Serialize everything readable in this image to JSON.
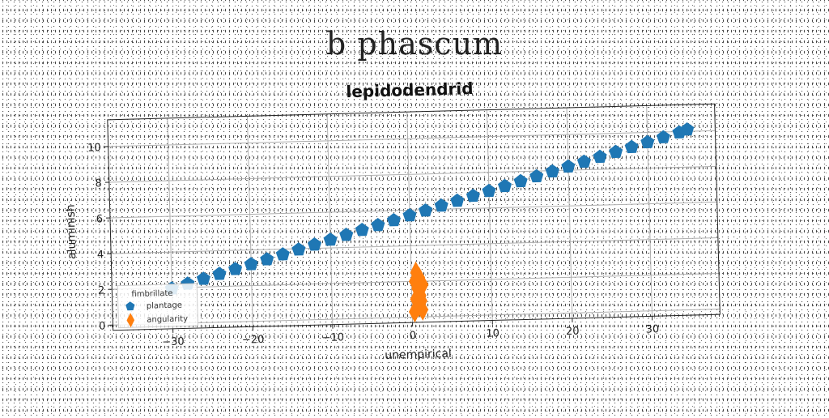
{
  "page": {
    "title": "b phascum"
  },
  "chart_data": {
    "type": "scatter",
    "title": "lepidodendrid",
    "xlabel": "unempirical",
    "ylabel": "aluminish",
    "xlim": [
      -37.5,
      38.5
    ],
    "ylim": [
      -0.3,
      11.5
    ],
    "xticks": [
      -30,
      -20,
      -10,
      0,
      10,
      20,
      30
    ],
    "yticks": [
      0,
      2,
      4,
      6,
      8,
      10
    ],
    "grid": true,
    "legend": {
      "title": "fimbrillate",
      "position": "lower-left"
    },
    "series": [
      {
        "name": "plantage",
        "color": "#1f77b4",
        "marker": "pentagon",
        "points": [
          [
            -30,
            1.95
          ],
          [
            -28,
            2.2
          ],
          [
            -26,
            2.45
          ],
          [
            -24,
            2.7
          ],
          [
            -22,
            2.95
          ],
          [
            -20,
            3.2
          ],
          [
            -18,
            3.45
          ],
          [
            -16,
            3.7
          ],
          [
            -14,
            3.95
          ],
          [
            -12,
            4.2
          ],
          [
            -10,
            4.45
          ],
          [
            -8,
            4.7
          ],
          [
            -6,
            4.95
          ],
          [
            -4,
            5.2
          ],
          [
            -2,
            5.45
          ],
          [
            0,
            5.7
          ],
          [
            2,
            5.95
          ],
          [
            4,
            6.2
          ],
          [
            6,
            6.45
          ],
          [
            8,
            6.7
          ],
          [
            10,
            6.95
          ],
          [
            12,
            7.2
          ],
          [
            14,
            7.45
          ],
          [
            16,
            7.7
          ],
          [
            18,
            7.95
          ],
          [
            20,
            8.2
          ],
          [
            22,
            8.45
          ],
          [
            24,
            8.7
          ],
          [
            26,
            8.95
          ],
          [
            28,
            9.2
          ],
          [
            30,
            9.45
          ],
          [
            32,
            9.7
          ],
          [
            34,
            9.95
          ],
          [
            35,
            10.1
          ]
        ]
      },
      {
        "name": "angularity",
        "color": "#ff7f0e",
        "marker": "diamond",
        "points": [
          [
            0.3,
            0.3
          ],
          [
            0.8,
            0.6
          ],
          [
            1.3,
            0.4
          ],
          [
            0.5,
            1.0
          ],
          [
            1.1,
            1.2
          ],
          [
            0.7,
            1.6
          ],
          [
            1.4,
            1.8
          ],
          [
            0.4,
            2.0
          ],
          [
            1.0,
            2.2
          ],
          [
            0.6,
            2.5
          ],
          [
            1.2,
            0.9
          ],
          [
            0.9,
            1.4
          ]
        ]
      }
    ]
  }
}
